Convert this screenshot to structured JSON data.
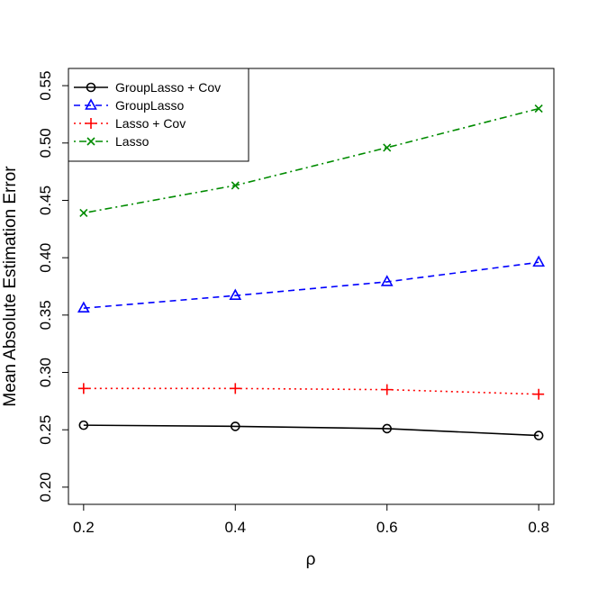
{
  "chart_data": {
    "type": "line",
    "title": "",
    "xlabel": "ρ",
    "ylabel": "Mean Absolute Estimation Error",
    "x": [
      0.2,
      0.4,
      0.6,
      0.8
    ],
    "xticks": [
      "0.2",
      "0.4",
      "0.6",
      "0.8"
    ],
    "yticks": [
      "0.20",
      "0.25",
      "0.30",
      "0.35",
      "0.40",
      "0.45",
      "0.50",
      "0.55"
    ],
    "xlim": [
      0.18,
      0.82
    ],
    "ylim": [
      0.185,
      0.565
    ],
    "grid": false,
    "legend_position": "top-left",
    "series": [
      {
        "name": "GroupLasso + Cov",
        "values": [
          0.254,
          0.253,
          0.251,
          0.245
        ],
        "color": "#000000",
        "marker": "circle",
        "linestyle": "solid"
      },
      {
        "name": "GroupLasso",
        "values": [
          0.356,
          0.367,
          0.379,
          0.396
        ],
        "color": "#0000ff",
        "marker": "triangle",
        "linestyle": "dashed"
      },
      {
        "name": "Lasso + Cov",
        "values": [
          0.286,
          0.286,
          0.285,
          0.281
        ],
        "color": "#ff0000",
        "marker": "plus",
        "linestyle": "dotted"
      },
      {
        "name": "Lasso",
        "values": [
          0.439,
          0.463,
          0.496,
          0.53
        ],
        "color": "#008b00",
        "marker": "cross",
        "linestyle": "dotdash"
      }
    ]
  }
}
